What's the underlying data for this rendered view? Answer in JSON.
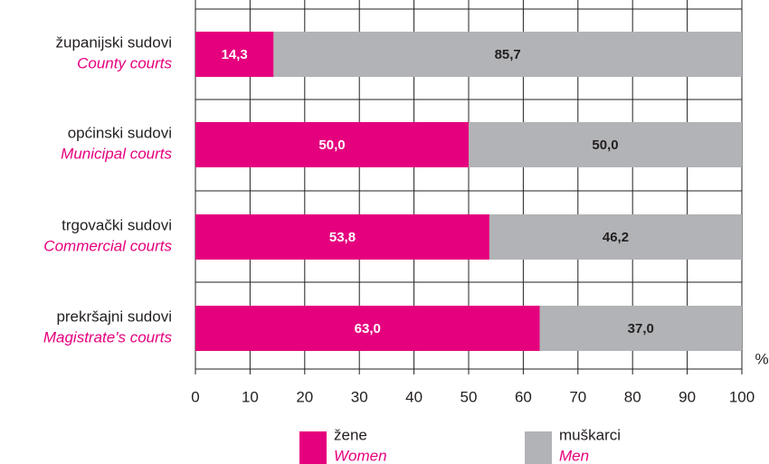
{
  "chart_data": {
    "type": "stacked_barh",
    "categories": [
      "županijski sudovi",
      "općinski sudovi",
      "trgovački sudovi",
      "prekršajni sudovi"
    ],
    "categories_en": [
      "County courts",
      "Municipal courts",
      "Commercial courts",
      "Magistrate's courts"
    ],
    "series": [
      {
        "name": "žene",
        "name_en": "Women",
        "color": "#e5007e",
        "values": [
          14.3,
          50.0,
          53.8,
          63.0
        ],
        "value_labels": [
          "14,3",
          "50,0",
          "53,8",
          "63,0"
        ]
      },
      {
        "name": "muškarci",
        "name_en": "Men",
        "color": "#b1b3b6",
        "values": [
          85.7,
          50.0,
          46.2,
          37.0
        ],
        "value_labels": [
          "85,7",
          "50,0",
          "46,2",
          "37,0"
        ]
      }
    ],
    "xlabel": "%",
    "xlim": [
      0,
      100
    ],
    "xticks": [
      0,
      10,
      20,
      30,
      40,
      50,
      60,
      70,
      80,
      90,
      100
    ],
    "grid": true
  }
}
